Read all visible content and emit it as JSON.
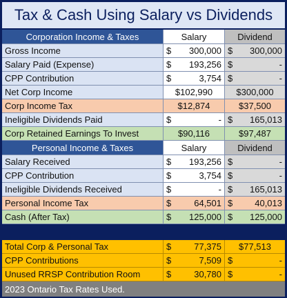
{
  "title": "Tax & Cash Using Salary vs Dividends",
  "rows": [
    {
      "kind": "header",
      "label": "Corporation Income & Taxes",
      "salary": {
        "amount": "Salary"
      },
      "dividend": {
        "amount": "Dividend"
      }
    },
    {
      "kind": "data",
      "label": "Gross Income",
      "salary": {
        "sign": "$",
        "amount": "300,000"
      },
      "dividend": {
        "sign": "$",
        "amount": "300,000"
      }
    },
    {
      "kind": "data",
      "label": "Salary Paid (Expense)",
      "salary": {
        "sign": "$",
        "amount": "193,256"
      },
      "dividend": {
        "sign": "$",
        "amount": "-"
      }
    },
    {
      "kind": "data",
      "label": "CPP Contribution",
      "salary": {
        "sign": "$",
        "amount": "3,754"
      },
      "dividend": {
        "sign": "$",
        "amount": "-"
      }
    },
    {
      "kind": "data",
      "label": "Net Corp Income",
      "salary": {
        "amount": "$102,990"
      },
      "dividend": {
        "amount": "$300,000"
      }
    },
    {
      "kind": "tax",
      "label": "Corp Income Tax",
      "salary": {
        "amount": "$12,874"
      },
      "dividend": {
        "amount": "$37,500"
      }
    },
    {
      "kind": "data",
      "label": "Ineligible Dividends Paid",
      "salary": {
        "sign": "$",
        "amount": "-"
      },
      "dividend": {
        "sign": "$",
        "amount": "165,013"
      }
    },
    {
      "kind": "retained",
      "label": "Corp Retained Earnings To Invest",
      "salary": {
        "amount": "$90,116"
      },
      "dividend": {
        "amount": "$97,487"
      }
    },
    {
      "kind": "header",
      "label": "Personal Income & Taxes",
      "salary": {
        "amount": "Salary"
      },
      "dividend": {
        "amount": "Dividend"
      }
    },
    {
      "kind": "data",
      "label": "Salary Received",
      "salary": {
        "sign": "$",
        "amount": "193,256"
      },
      "dividend": {
        "sign": "$",
        "amount": "-"
      }
    },
    {
      "kind": "data",
      "label": "CPP Contribution",
      "salary": {
        "sign": "$",
        "amount": "3,754"
      },
      "dividend": {
        "sign": "$",
        "amount": "-"
      }
    },
    {
      "kind": "data",
      "label": "Ineligible Dividends Received",
      "salary": {
        "sign": "$",
        "amount": "-"
      },
      "dividend": {
        "sign": "$",
        "amount": "165,013"
      }
    },
    {
      "kind": "tax",
      "label": "Personal Income Tax",
      "salary": {
        "sign": "$",
        "amount": "64,501"
      },
      "dividend": {
        "sign": "$",
        "amount": "40,013"
      }
    },
    {
      "kind": "retained",
      "label": "Cash (After Tax)",
      "salary": {
        "sign": "$",
        "amount": "125,000"
      },
      "dividend": {
        "sign": "$",
        "amount": "125,000"
      }
    },
    {
      "kind": "spacer"
    },
    {
      "kind": "total",
      "label": "Total Corp & Personal Tax",
      "salary": {
        "sign": "$",
        "amount": "77,375"
      },
      "dividend": {
        "amount": "$77,513"
      }
    },
    {
      "kind": "total",
      "label": "CPP Contributions",
      "salary": {
        "sign": "$",
        "amount": "7,509"
      },
      "dividend": {
        "sign": "$",
        "amount": "-"
      }
    },
    {
      "kind": "total",
      "label": "Unused RRSP Contribution Room",
      "salary": {
        "sign": "$",
        "amount": "30,780"
      },
      "dividend": {
        "sign": "$",
        "amount": "-"
      }
    }
  ],
  "footer": "2023 Ontario Tax Rates Used."
}
